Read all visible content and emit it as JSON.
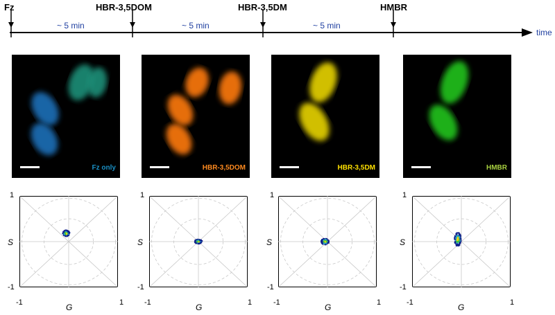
{
  "timeline": {
    "events": [
      {
        "label": "Fz"
      },
      {
        "label": "HBR-3,5DOM"
      },
      {
        "label": "HBR-3,5DM"
      },
      {
        "label": "HMBR"
      }
    ],
    "intervals": [
      "~ 5 min",
      "~ 5 min",
      "~ 5 min"
    ],
    "axis_label": "time"
  },
  "panels": [
    {
      "label": "Fz only",
      "label_color": "#1a8fc4",
      "cell_color": "#1f6fb8",
      "cell_color2": "#1f8f78"
    },
    {
      "label": "HBR-3,5DOM",
      "label_color": "#ff8a1f",
      "cell_color": "#ff7a10",
      "cell_color2": "#ffb020"
    },
    {
      "label": "HBR-3,5DM",
      "label_color": "#ffe000",
      "cell_color": "#e8d400",
      "cell_color2": "#f2e200"
    },
    {
      "label": "HMBR",
      "label_color": "#a8d040",
      "cell_color": "#22c41a",
      "cell_color2": "#30d020"
    }
  ],
  "phasor": {
    "s_label": "S",
    "g_label": "G",
    "y_max": "1",
    "y_min": "-1",
    "x_min": "-1",
    "x_max": "1",
    "clusters": [
      {
        "g": -0.05,
        "s": 0.18,
        "spread_g": 0.07,
        "spread_s": 0.07
      },
      {
        "g": 0.0,
        "s": 0.0,
        "spread_g": 0.08,
        "spread_s": 0.05
      },
      {
        "g": -0.05,
        "s": 0.0,
        "spread_g": 0.08,
        "spread_s": 0.07
      },
      {
        "g": -0.07,
        "s": 0.05,
        "spread_g": 0.07,
        "spread_s": 0.15
      }
    ]
  }
}
